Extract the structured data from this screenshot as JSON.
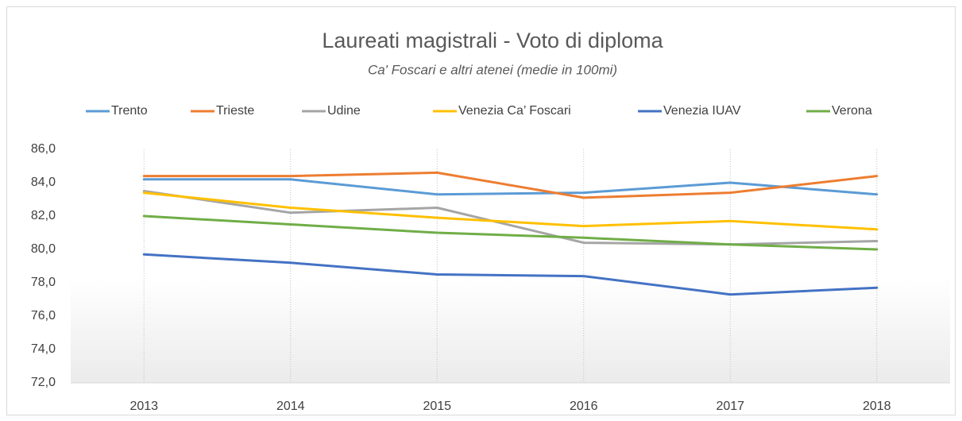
{
  "chart_data": {
    "type": "line",
    "title": "Laureati magistrali - Voto di diploma",
    "subtitle": "Ca' Foscari e altri atenei (medie in 100mi)",
    "categories": [
      "2013",
      "2014",
      "2015",
      "2016",
      "2017",
      "2018"
    ],
    "series": [
      {
        "name": "Trento",
        "color": "#5b9bd5",
        "values": [
          84.2,
          84.2,
          83.3,
          83.4,
          84.0,
          83.3
        ]
      },
      {
        "name": "Trieste",
        "color": "#ed7d31",
        "values": [
          84.4,
          84.4,
          84.6,
          83.1,
          83.4,
          84.4
        ]
      },
      {
        "name": "Udine",
        "color": "#a5a5a5",
        "values": [
          83.5,
          82.2,
          82.5,
          80.4,
          80.3,
          80.5
        ]
      },
      {
        "name": "Venezia Ca’ Foscari",
        "color": "#ffc000",
        "values": [
          83.4,
          82.5,
          81.9,
          81.4,
          81.7,
          81.2
        ]
      },
      {
        "name": "Venezia IUAV",
        "color": "#4472c4",
        "values": [
          79.7,
          79.2,
          78.5,
          78.4,
          77.3,
          77.7
        ]
      },
      {
        "name": "Verona",
        "color": "#70ad47",
        "values": [
          82.0,
          81.5,
          81.0,
          80.7,
          80.3,
          80.0
        ]
      }
    ],
    "ylim": [
      72,
      86
    ],
    "yticks": [
      {
        "value": 72,
        "label": "72,0"
      },
      {
        "value": 74,
        "label": "74,0"
      },
      {
        "value": 76,
        "label": "76,0"
      },
      {
        "value": 78,
        "label": "78,0"
      },
      {
        "value": 80,
        "label": "80,0"
      },
      {
        "value": 82,
        "label": "82,0"
      },
      {
        "value": 84,
        "label": "84,0"
      },
      {
        "value": 86,
        "label": "86,0"
      }
    ],
    "grid": true,
    "legend": "top"
  }
}
